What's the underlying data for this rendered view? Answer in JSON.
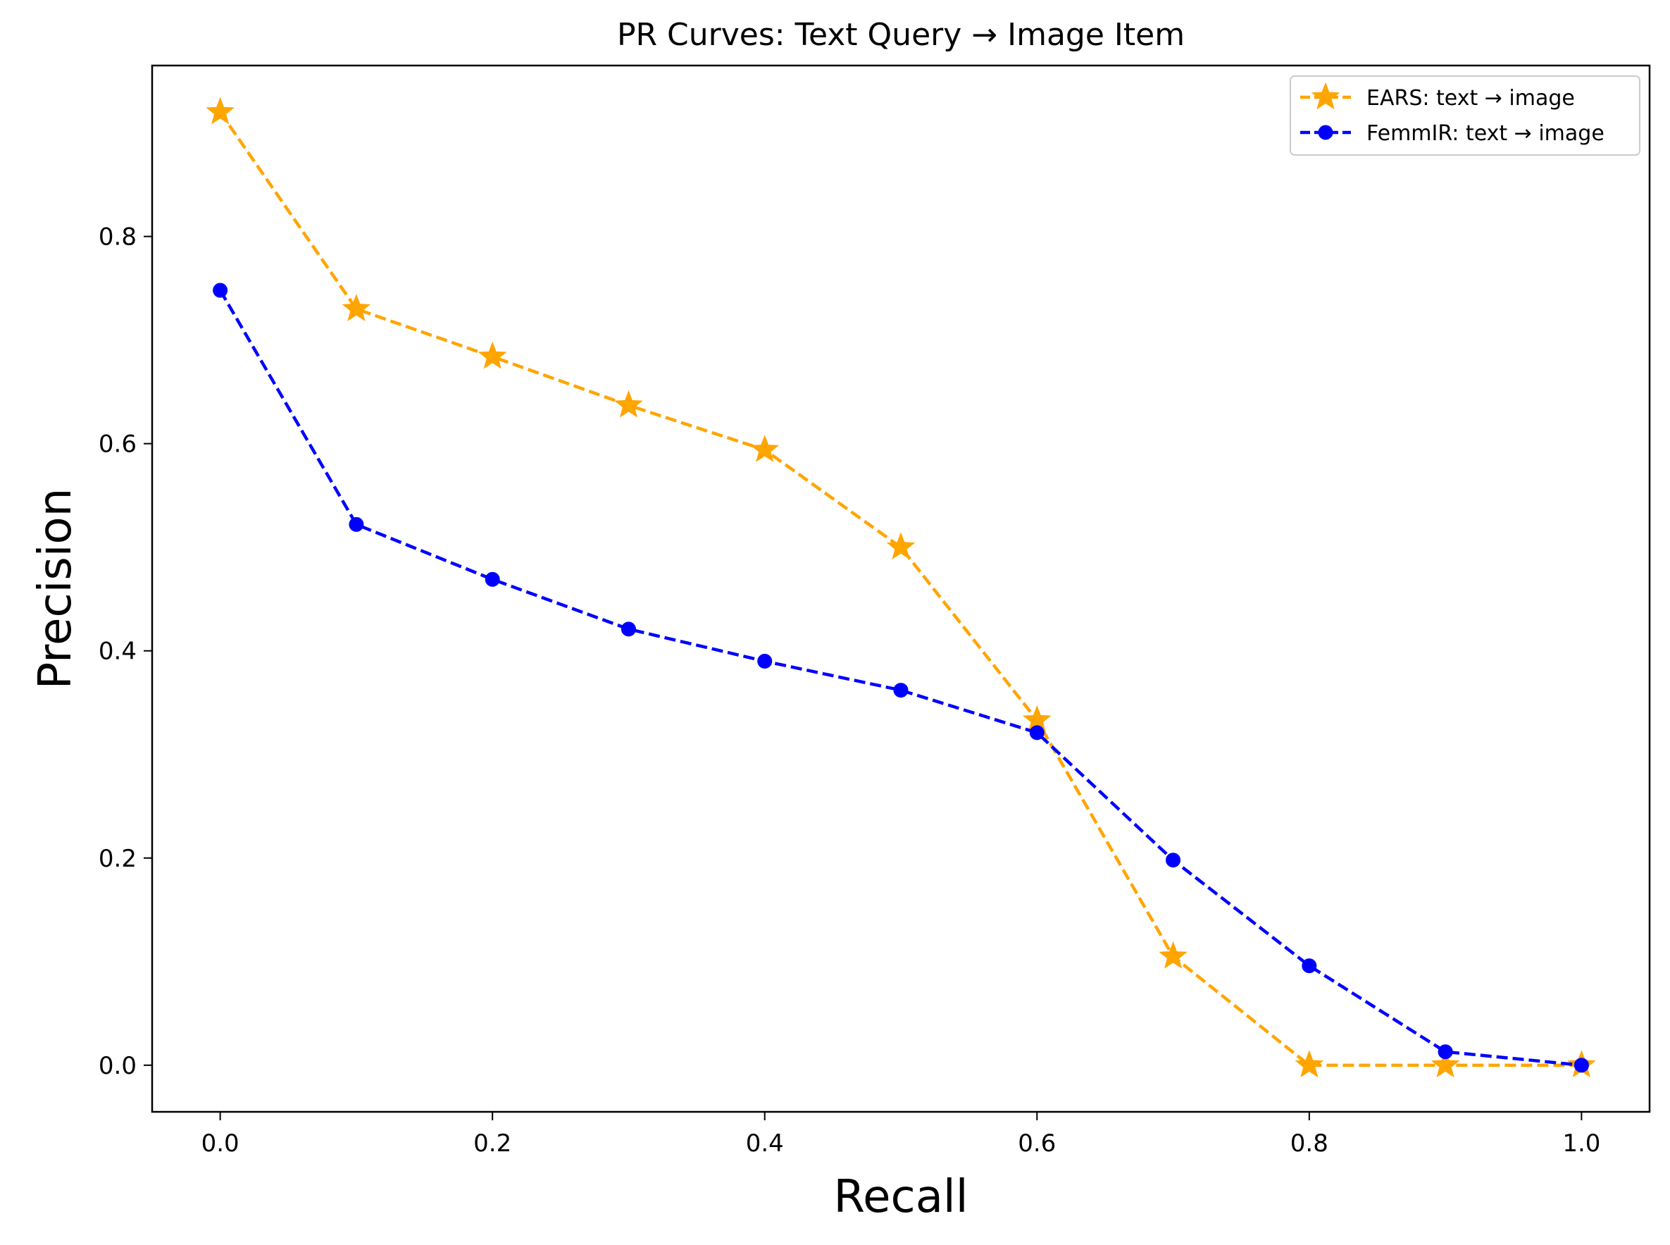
{
  "chart_data": {
    "type": "line",
    "title": "PR Curves: Text Query → Image Item",
    "xlabel": "Recall",
    "ylabel": "Precision",
    "xlim": [
      -0.05,
      1.05
    ],
    "ylim": [
      -0.045,
      0.965
    ],
    "xticks": [
      0.0,
      0.2,
      0.4,
      0.6,
      0.8,
      1.0
    ],
    "xtick_labels": [
      "0.0",
      "0.2",
      "0.4",
      "0.6",
      "0.8",
      "1.0"
    ],
    "yticks": [
      0.0,
      0.2,
      0.4,
      0.6,
      0.8
    ],
    "ytick_labels": [
      "0.0",
      "0.2",
      "0.4",
      "0.6",
      "0.8"
    ],
    "grid": false,
    "legend_position": "top-right",
    "x": [
      0.0,
      0.1,
      0.2,
      0.3,
      0.4,
      0.5,
      0.6,
      0.7,
      0.8,
      0.9,
      1.0
    ],
    "series": [
      {
        "name": "EARS: text → image",
        "color": "#ffa500",
        "marker": "star",
        "linestyle": "dashed",
        "values": [
          0.92,
          0.73,
          0.684,
          0.637,
          0.594,
          0.5,
          0.333,
          0.105,
          0.0,
          0.0,
          0.0
        ]
      },
      {
        "name": "FemmIR: text → image",
        "color": "#0000ff",
        "marker": "circle",
        "linestyle": "dashed",
        "values": [
          0.748,
          0.522,
          0.469,
          0.421,
          0.39,
          0.362,
          0.321,
          0.198,
          0.096,
          0.013,
          0.0
        ]
      }
    ]
  }
}
